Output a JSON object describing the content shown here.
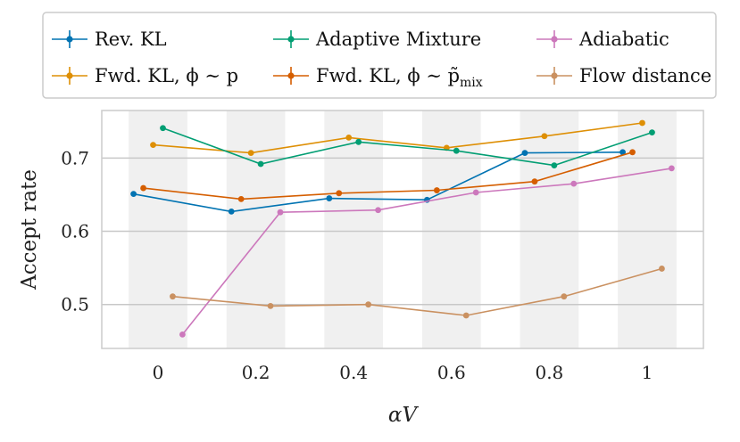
{
  "chart_data": {
    "type": "line",
    "xlabel": "αV",
    "ylabel": "Accept rate",
    "xlim": [
      -0.115,
      1.115
    ],
    "ylim": [
      0.44,
      0.765
    ],
    "xticks": [
      {
        "value": 0,
        "label": "0"
      },
      {
        "value": 0.2,
        "label": "0.2"
      },
      {
        "value": 0.4,
        "label": "0.4"
      },
      {
        "value": 0.6,
        "label": "0.6"
      },
      {
        "value": 0.8,
        "label": "0.8"
      },
      {
        "value": 1,
        "label": "1"
      }
    ],
    "yticks": [
      {
        "value": 0.5,
        "label": "0.5"
      },
      {
        "value": 0.6,
        "label": "0.6"
      },
      {
        "value": 0.7,
        "label": "0.7"
      }
    ],
    "grid": true,
    "shaded_bands": [
      [
        -0.06,
        0.06
      ],
      [
        0.14,
        0.26
      ],
      [
        0.34,
        0.46
      ],
      [
        0.54,
        0.66
      ],
      [
        0.74,
        0.86
      ],
      [
        0.94,
        1.06
      ]
    ],
    "legend_position": "top",
    "series": [
      {
        "name": "Rev. KL",
        "color": "#0173b2",
        "x": [
          -0.05,
          0.15,
          0.35,
          0.55,
          0.75,
          0.95
        ],
        "y": [
          0.651,
          0.627,
          0.645,
          0.643,
          0.707,
          0.708
        ]
      },
      {
        "name": "Fwd. KL, ϕ ∼ p",
        "color": "#de8f05",
        "x": [
          -0.01,
          0.19,
          0.39,
          0.59,
          0.79,
          0.99
        ],
        "y": [
          0.718,
          0.707,
          0.728,
          0.714,
          0.73,
          0.748
        ]
      },
      {
        "name": "Adaptive Mixture",
        "color": "#029e73",
        "x": [
          0.01,
          0.21,
          0.41,
          0.61,
          0.81,
          1.01
        ],
        "y": [
          0.741,
          0.692,
          0.722,
          0.71,
          0.69,
          0.735
        ]
      },
      {
        "name": "Fwd. KL, ϕ ∼ p̃mix",
        "color": "#d55e00",
        "x": [
          -0.03,
          0.17,
          0.37,
          0.57,
          0.77,
          0.97
        ],
        "y": [
          0.659,
          0.644,
          0.652,
          0.656,
          0.668,
          0.708
        ]
      },
      {
        "name": "Adiabatic",
        "color": "#cc78bc",
        "x": [
          0.05,
          0.25,
          0.45,
          0.65,
          0.85,
          1.05
        ],
        "y": [
          0.459,
          0.626,
          0.629,
          0.653,
          0.665,
          0.686
        ]
      },
      {
        "name": "Flow distance",
        "color": "#ca9161",
        "x": [
          0.03,
          0.23,
          0.43,
          0.63,
          0.83,
          1.03
        ],
        "y": [
          0.511,
          0.498,
          0.5,
          0.485,
          0.511,
          0.549
        ]
      }
    ]
  },
  "legend": {
    "items": [
      {
        "series": 0,
        "main": "Rev. KL",
        "sub": ""
      },
      {
        "series": 2,
        "main": "Adaptive Mixture",
        "sub": ""
      },
      {
        "series": 4,
        "main": "Adiabatic",
        "sub": ""
      },
      {
        "series": 1,
        "main": "Fwd. KL, ϕ ∼ p",
        "sub": ""
      },
      {
        "series": 3,
        "main": "Fwd. KL, ϕ ∼ p̃",
        "sub": "mix"
      },
      {
        "series": 5,
        "main": "Flow distance",
        "sub": ""
      }
    ]
  }
}
